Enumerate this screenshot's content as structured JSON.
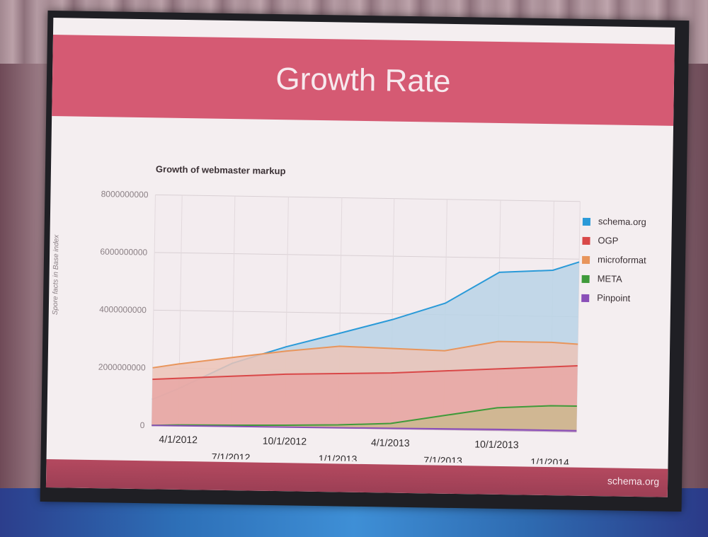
{
  "slide": {
    "title": "Growth Rate",
    "footer": "schema.org"
  },
  "chart_data": {
    "type": "area",
    "title": "Growth of webmaster markup",
    "ylabel": "Spore facts in Base index",
    "xlabel": "",
    "ylim": [
      0,
      8000000000
    ],
    "yticks": [
      "0",
      "2000000000",
      "4000000000",
      "6000000000",
      "8000000000"
    ],
    "xticks_upper": [
      "4/1/2012",
      "10/1/2012",
      "4/1/2013",
      "10/1/2013"
    ],
    "xticks_lower": [
      "7/1/2012",
      "1/1/2013",
      "7/1/2013",
      "1/1/2014"
    ],
    "grid": true,
    "legend_position": "right",
    "x": [
      "2012-02-15",
      "2012-04-01",
      "2012-07-01",
      "2012-10-01",
      "2013-01-01",
      "2013-04-01",
      "2013-07-01",
      "2013-10-01",
      "2014-01-01",
      "2014-02-15"
    ],
    "series": [
      {
        "name": "schema.org",
        "color": "#2a9ad8",
        "fill": "#b8d3e6",
        "values": [
          900000000,
          1300000000,
          2200000000,
          2800000000,
          3300000000,
          3800000000,
          4400000000,
          5500000000,
          5600000000,
          5900000000
        ]
      },
      {
        "name": "OGP",
        "color": "#d94848",
        "fill": "#e8a7a4",
        "values": [
          1600000000,
          1650000000,
          1750000000,
          1850000000,
          1900000000,
          1950000000,
          2050000000,
          2150000000,
          2250000000,
          2300000000
        ]
      },
      {
        "name": "microformat",
        "color": "#e8955b",
        "fill": "#ecc4b7",
        "values": [
          2000000000,
          2150000000,
          2400000000,
          2650000000,
          2850000000,
          2800000000,
          2750000000,
          3100000000,
          3100000000,
          3050000000
        ]
      },
      {
        "name": "META",
        "color": "#3f9a3a",
        "fill": "#cbb88f",
        "values": [
          0,
          30000000,
          50000000,
          80000000,
          120000000,
          200000000,
          500000000,
          800000000,
          900000000,
          900000000
        ]
      },
      {
        "name": "Pinpoint",
        "color": "#8a4fb8",
        "fill": "#b48bd0",
        "values": [
          0,
          5000000,
          10000000,
          15000000,
          20000000,
          30000000,
          40000000,
          50000000,
          50000000,
          50000000
        ]
      }
    ]
  }
}
